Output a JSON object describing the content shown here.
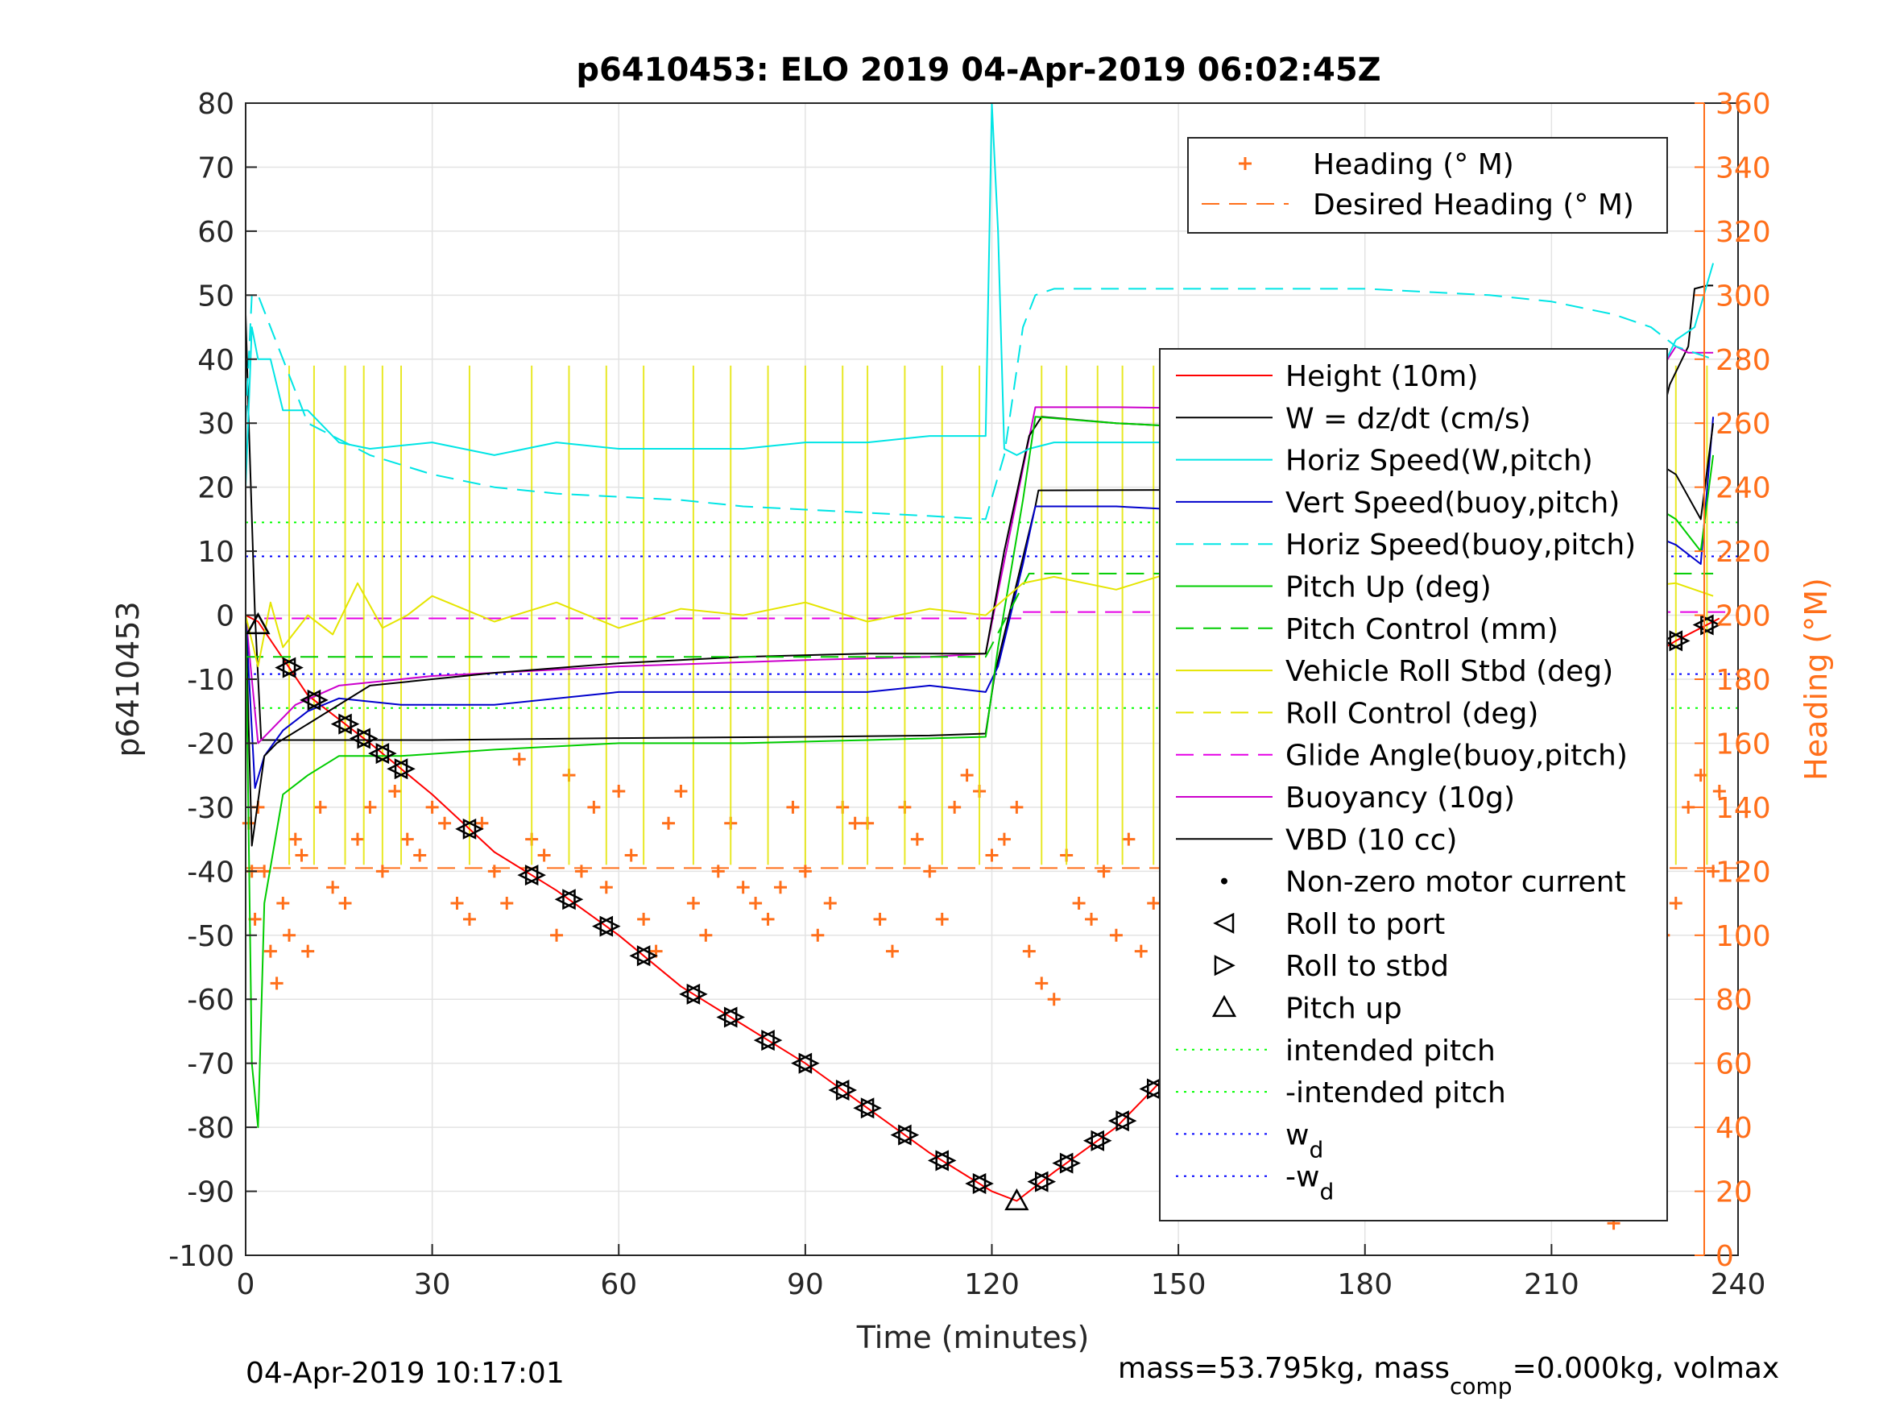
{
  "chart_data": {
    "type": "line",
    "title": "p6410453: ELO 2019 04-Apr-2019 06:02:45Z",
    "xlabel": "Time (minutes)",
    "ylabel": "p6410453",
    "ylabel_right": "Heading (°M)",
    "xlim": [
      0,
      240
    ],
    "ylim": [
      -100,
      80
    ],
    "ylim_right": [
      0,
      360
    ],
    "x_ticks": [
      0,
      30,
      60,
      90,
      120,
      150,
      180,
      210,
      240
    ],
    "y_ticks": [
      -100,
      -90,
      -80,
      -70,
      -60,
      -50,
      -40,
      -30,
      -20,
      -10,
      0,
      10,
      20,
      30,
      40,
      50,
      60,
      70,
      80
    ],
    "y_right_ticks": [
      0,
      20,
      40,
      60,
      80,
      100,
      120,
      140,
      160,
      180,
      200,
      220,
      240,
      260,
      280,
      300,
      320,
      340,
      360
    ],
    "grid": true,
    "footer_left": "04-Apr-2019 10:17:01",
    "footer_right": {
      "pre": "mass=53.795kg, mass",
      "sub": "comp",
      "post": "=0.000kg, volmax"
    },
    "legend_top": {
      "placement": "top-right",
      "entries": [
        {
          "label": "Heading (° M)",
          "color": "#FF6F1A",
          "style": "plus"
        },
        {
          "label": "Desired Heading (° M)",
          "color": "#FF6F1A",
          "style": "dashed"
        }
      ]
    },
    "legend_main": {
      "placement": "right",
      "entries": [
        {
          "label": "Height (10m)",
          "color": "#FF0000",
          "style": "solid"
        },
        {
          "label": "W = dz/dt (cm/s)",
          "color": "#000000",
          "style": "solid"
        },
        {
          "label": "Horiz Speed(W,pitch)",
          "color": "#00E5E5",
          "style": "solid"
        },
        {
          "label": "Vert Speed(buoy,pitch)",
          "color": "#0000CC",
          "style": "solid"
        },
        {
          "label": "Horiz Speed(buoy,pitch)",
          "color": "#00E5E5",
          "style": "dashed"
        },
        {
          "label": "Pitch Up (deg)",
          "color": "#00CC00",
          "style": "solid"
        },
        {
          "label": "Pitch Control (mm)",
          "color": "#00CC00",
          "style": "dashed"
        },
        {
          "label": "Vehicle Roll Stbd (deg)",
          "color": "#E5E500",
          "style": "solid"
        },
        {
          "label": "Roll Control (deg)",
          "color": "#E5E500",
          "style": "dashed"
        },
        {
          "label": "Glide Angle(buoy,pitch)",
          "color": "#E500E5",
          "style": "dashed"
        },
        {
          "label": "Buoyancy (10g)",
          "color": "#CC00CC",
          "style": "solid"
        },
        {
          "label": "VBD (10 cc)",
          "color": "#000000",
          "style": "solid"
        },
        {
          "label": "Non-zero motor current",
          "color": "#000000",
          "style": "dot"
        },
        {
          "label": "Roll to port",
          "color": "#000000",
          "style": "tri-left"
        },
        {
          "label": "Roll to stbd",
          "color": "#000000",
          "style": "tri-right"
        },
        {
          "label": "Pitch up",
          "color": "#000000",
          "style": "tri-up"
        },
        {
          "label": "intended pitch",
          "color": "#00FF00",
          "style": "dotted"
        },
        {
          "label": "-intended pitch",
          "color": "#00FF00",
          "style": "dotted"
        },
        {
          "label": "w",
          "sub": "d",
          "color": "#0000FF",
          "style": "dotted"
        },
        {
          "label": "-w",
          "sub": "d",
          "color": "#0000FF",
          "style": "dotted"
        }
      ]
    },
    "reference_lines": [
      {
        "name": "intended pitch",
        "y": 14.5,
        "color": "#00FF00"
      },
      {
        "name": "-intended pitch",
        "y": -14.5,
        "color": "#00FF00"
      },
      {
        "name": "w_d",
        "y": 9.2,
        "color": "#0000FF"
      },
      {
        "name": "-w_d",
        "y": -9.2,
        "color": "#0000FF"
      },
      {
        "name": "Glide Angle(buoy,pitch) dive",
        "y": -0.5,
        "x_range": [
          3,
          125
        ],
        "color": "#E500E5"
      },
      {
        "name": "Glide Angle(buoy,pitch) climb",
        "y": 0.5,
        "x_range": [
          125,
          238
        ],
        "color": "#E500E5"
      },
      {
        "name": "Desired Heading (° M)",
        "y_right": 121,
        "color": "#FF6F1A"
      }
    ],
    "series": [
      {
        "name": "Height (10m)",
        "color": "#FF0000",
        "x": [
          0,
          2,
          10,
          20,
          30,
          40,
          50,
          60,
          70,
          80,
          90,
          100,
          110,
          120,
          124,
          130,
          140,
          150,
          160,
          170,
          180,
          190,
          200,
          210,
          220,
          230,
          237
        ],
        "y": [
          0,
          -1,
          -12.5,
          -20,
          -28,
          -37,
          -43,
          -50,
          -58,
          -64,
          -70,
          -77,
          -84,
          -90,
          -91.5,
          -87,
          -80,
          -70,
          -59,
          -48,
          -38,
          -29,
          -22,
          -16,
          -10,
          -4,
          -0.5
        ]
      },
      {
        "name": "VBD (10 cc)",
        "color": "#000000",
        "x": [
          0,
          0.5,
          1.5,
          2.5,
          30,
          60,
          90,
          110,
          119,
          120.5,
          127,
          127.5,
          160,
          180,
          200,
          219,
          220,
          226,
          227,
          228,
          229,
          232,
          233,
          235,
          236
        ],
        "y": [
          47,
          30,
          0,
          -19.5,
          -19.5,
          -19.2,
          -19,
          -18.8,
          -18.5,
          -9,
          17,
          19.5,
          19.6,
          19.7,
          19.7,
          19.7,
          26,
          32,
          32,
          32,
          36,
          42,
          51,
          51.5,
          51.5
        ]
      },
      {
        "name": "Buoyancy (10g)",
        "color": "#CC00CC",
        "x": [
          0,
          2,
          4,
          8,
          15,
          30,
          60,
          90,
          110,
          119,
          127,
          140,
          180,
          210,
          220,
          225,
          226,
          230,
          232,
          236
        ],
        "y": [
          0,
          -20,
          -18,
          -14,
          -11,
          -9.5,
          -8,
          -7,
          -6.5,
          -6,
          32.5,
          32.5,
          32,
          30,
          30,
          32,
          36,
          42,
          41,
          41
        ]
      },
      {
        "name": "Vert Speed(buoy,pitch)",
        "color": "#0000CC",
        "x": [
          0,
          1.5,
          3,
          6,
          10,
          15,
          25,
          40,
          60,
          80,
          100,
          110,
          119,
          121,
          125,
          127,
          140,
          160,
          180,
          200,
          215,
          225,
          230,
          234,
          236
        ],
        "y": [
          0,
          -27,
          -22,
          -18,
          -15,
          -13,
          -14,
          -14,
          -12,
          -12,
          -12,
          -11,
          -12,
          -8,
          8,
          17,
          17,
          16,
          16,
          15,
          14,
          13,
          11,
          8,
          31
        ]
      },
      {
        "name": "W = dz/dt (cm/s)",
        "color": "#000000",
        "x": [
          0,
          1,
          3,
          5,
          10,
          20,
          40,
          60,
          80,
          100,
          119,
          122,
          126,
          128,
          140,
          160,
          180,
          200,
          215,
          225,
          230,
          234,
          236
        ],
        "y": [
          0,
          -36,
          -22,
          -20,
          -17,
          -11,
          -9,
          -7.5,
          -6.5,
          -6,
          -6,
          10,
          28,
          31,
          30,
          29,
          29,
          28,
          27,
          25,
          22,
          15,
          30
        ]
      },
      {
        "name": "Horiz Speed(W,pitch)",
        "color": "#00E5E5",
        "x": [
          0,
          1,
          2,
          4,
          6,
          10,
          15,
          20,
          30,
          40,
          50,
          60,
          70,
          80,
          90,
          100,
          110,
          119,
          120,
          121,
          122,
          124,
          126,
          130,
          150,
          170,
          190,
          210,
          220,
          226,
          230,
          233,
          236
        ],
        "y": [
          20,
          45,
          40,
          40,
          32,
          32,
          27,
          26,
          27,
          25,
          27,
          26,
          26,
          26,
          27,
          27,
          28,
          28,
          80,
          60,
          26,
          25,
          26,
          27,
          27,
          26,
          25,
          24,
          25,
          35,
          43,
          45,
          55
        ]
      },
      {
        "name": "Horiz Speed(buoy,pitch)",
        "color": "#00E5E5",
        "x": [
          0,
          1,
          2,
          4,
          10,
          20,
          30,
          40,
          50,
          60,
          70,
          80,
          90,
          100,
          110,
          119,
          122,
          125,
          127,
          130,
          140,
          160,
          180,
          200,
          210,
          220,
          226,
          230,
          236
        ],
        "y": [
          30,
          50,
          50,
          45,
          30,
          25,
          22,
          20,
          19,
          18.5,
          18,
          17,
          16.5,
          16,
          15.5,
          15,
          25,
          45,
          50,
          51,
          51,
          51,
          51,
          50,
          49,
          47,
          45,
          42,
          40
        ]
      },
      {
        "name": "Pitch Up (deg)",
        "color": "#00CC00",
        "x": [
          0,
          1,
          2,
          3,
          6,
          10,
          15,
          25,
          40,
          60,
          80,
          100,
          119,
          121,
          125,
          127,
          140,
          160,
          180,
          200,
          215,
          225,
          230,
          234,
          236
        ],
        "y": [
          0,
          -70,
          -80,
          -45,
          -28,
          -25,
          -22,
          -22,
          -21,
          -20,
          -20,
          -19.5,
          -19,
          -5,
          18,
          31,
          30,
          29,
          28,
          25,
          22,
          18,
          15,
          10,
          25
        ]
      },
      {
        "name": "Pitch Control (mm)",
        "color": "#00CC00",
        "x": [
          0,
          2,
          30,
          60,
          90,
          119,
          126,
          150,
          180,
          210,
          236
        ],
        "y": [
          -6.5,
          -6.5,
          -6.5,
          -6.5,
          -6.5,
          -6.5,
          6.5,
          6.5,
          6.5,
          6.5,
          6.5
        ]
      },
      {
        "name": "Vehicle Roll Stbd (deg)",
        "color": "#E5E500",
        "x": [
          0,
          2,
          4,
          6,
          10,
          14,
          18,
          22,
          26,
          30,
          40,
          50,
          60,
          70,
          80,
          90,
          100,
          110,
          119,
          125,
          130,
          140,
          150,
          160,
          170,
          180,
          190,
          200,
          210,
          220,
          230,
          236
        ],
        "y": [
          0,
          -8,
          2,
          -5,
          0,
          -3,
          5,
          -2,
          0,
          3,
          -1,
          2,
          -2,
          1,
          0,
          2,
          -1,
          1,
          0,
          5,
          6,
          4,
          7,
          5,
          4,
          6,
          5,
          3,
          2,
          4,
          5,
          3
        ]
      }
    ],
    "spike_events_minutes": [
      7,
      11,
      16,
      19,
      22,
      25,
      36,
      46,
      52,
      58,
      64,
      72,
      78,
      84,
      90,
      96,
      100,
      106,
      112,
      118,
      128,
      132,
      137,
      141,
      146,
      150,
      155,
      160,
      165,
      170,
      175,
      180,
      185,
      190,
      195,
      200,
      205,
      210,
      215,
      220,
      225,
      230,
      235
    ],
    "heading_points_approx": {
      "series": "Heading (° M)",
      "x": [
        0.5,
        1,
        1.5,
        2,
        3,
        4,
        5,
        6,
        7,
        8,
        9,
        10,
        12,
        14,
        16,
        18,
        20,
        22,
        24,
        26,
        28,
        30,
        32,
        34,
        36,
        38,
        40,
        42,
        44,
        46,
        48,
        50,
        52,
        54,
        56,
        58,
        60,
        62,
        64,
        66,
        68,
        70,
        72,
        74,
        76,
        78,
        80,
        82,
        84,
        86,
        88,
        90,
        92,
        94,
        96,
        98,
        100,
        102,
        104,
        106,
        108,
        110,
        112,
        114,
        116,
        118,
        120,
        122,
        124,
        126,
        128,
        130,
        132,
        134,
        136,
        138,
        140,
        142,
        144,
        146,
        148,
        150,
        152,
        154,
        156,
        158,
        160,
        162,
        164,
        166,
        168,
        170,
        172,
        174,
        176,
        178,
        180,
        182,
        184,
        186,
        188,
        190,
        192,
        194,
        196,
        198,
        200,
        202,
        204,
        206,
        208,
        210,
        212,
        214,
        216,
        217,
        218,
        219,
        220,
        222,
        224,
        226,
        228,
        230,
        232,
        234,
        236,
        237
      ],
      "y": [
        135,
        120,
        105,
        140,
        120,
        95,
        85,
        110,
        100,
        130,
        125,
        95,
        140,
        115,
        110,
        130,
        140,
        120,
        145,
        130,
        125,
        140,
        135,
        110,
        105,
        135,
        120,
        110,
        155,
        130,
        125,
        100,
        150,
        120,
        140,
        115,
        145,
        125,
        105,
        95,
        135,
        145,
        110,
        100,
        120,
        135,
        115,
        110,
        105,
        115,
        140,
        120,
        100,
        110,
        140,
        135,
        135,
        105,
        95,
        140,
        130,
        120,
        105,
        140,
        150,
        145,
        125,
        130,
        140,
        95,
        85,
        80,
        125,
        110,
        105,
        120,
        100,
        130,
        95,
        110,
        125,
        110,
        90,
        120,
        130,
        100,
        115,
        110,
        95,
        120,
        125,
        100,
        90,
        115,
        130,
        110,
        95,
        120,
        100,
        130,
        90,
        115,
        100,
        110,
        130,
        105,
        90,
        120,
        115,
        100,
        95,
        110,
        125,
        135,
        110,
        70,
        40,
        25,
        10,
        130,
        115,
        90,
        100,
        110,
        140,
        150,
        120,
        145
      ]
    },
    "events_pitch_up": [
      {
        "x": 2,
        "y": -1.5
      },
      {
        "x": 124,
        "y": -91.5
      },
      {
        "x": 163,
        "y": -60
      }
    ]
  }
}
